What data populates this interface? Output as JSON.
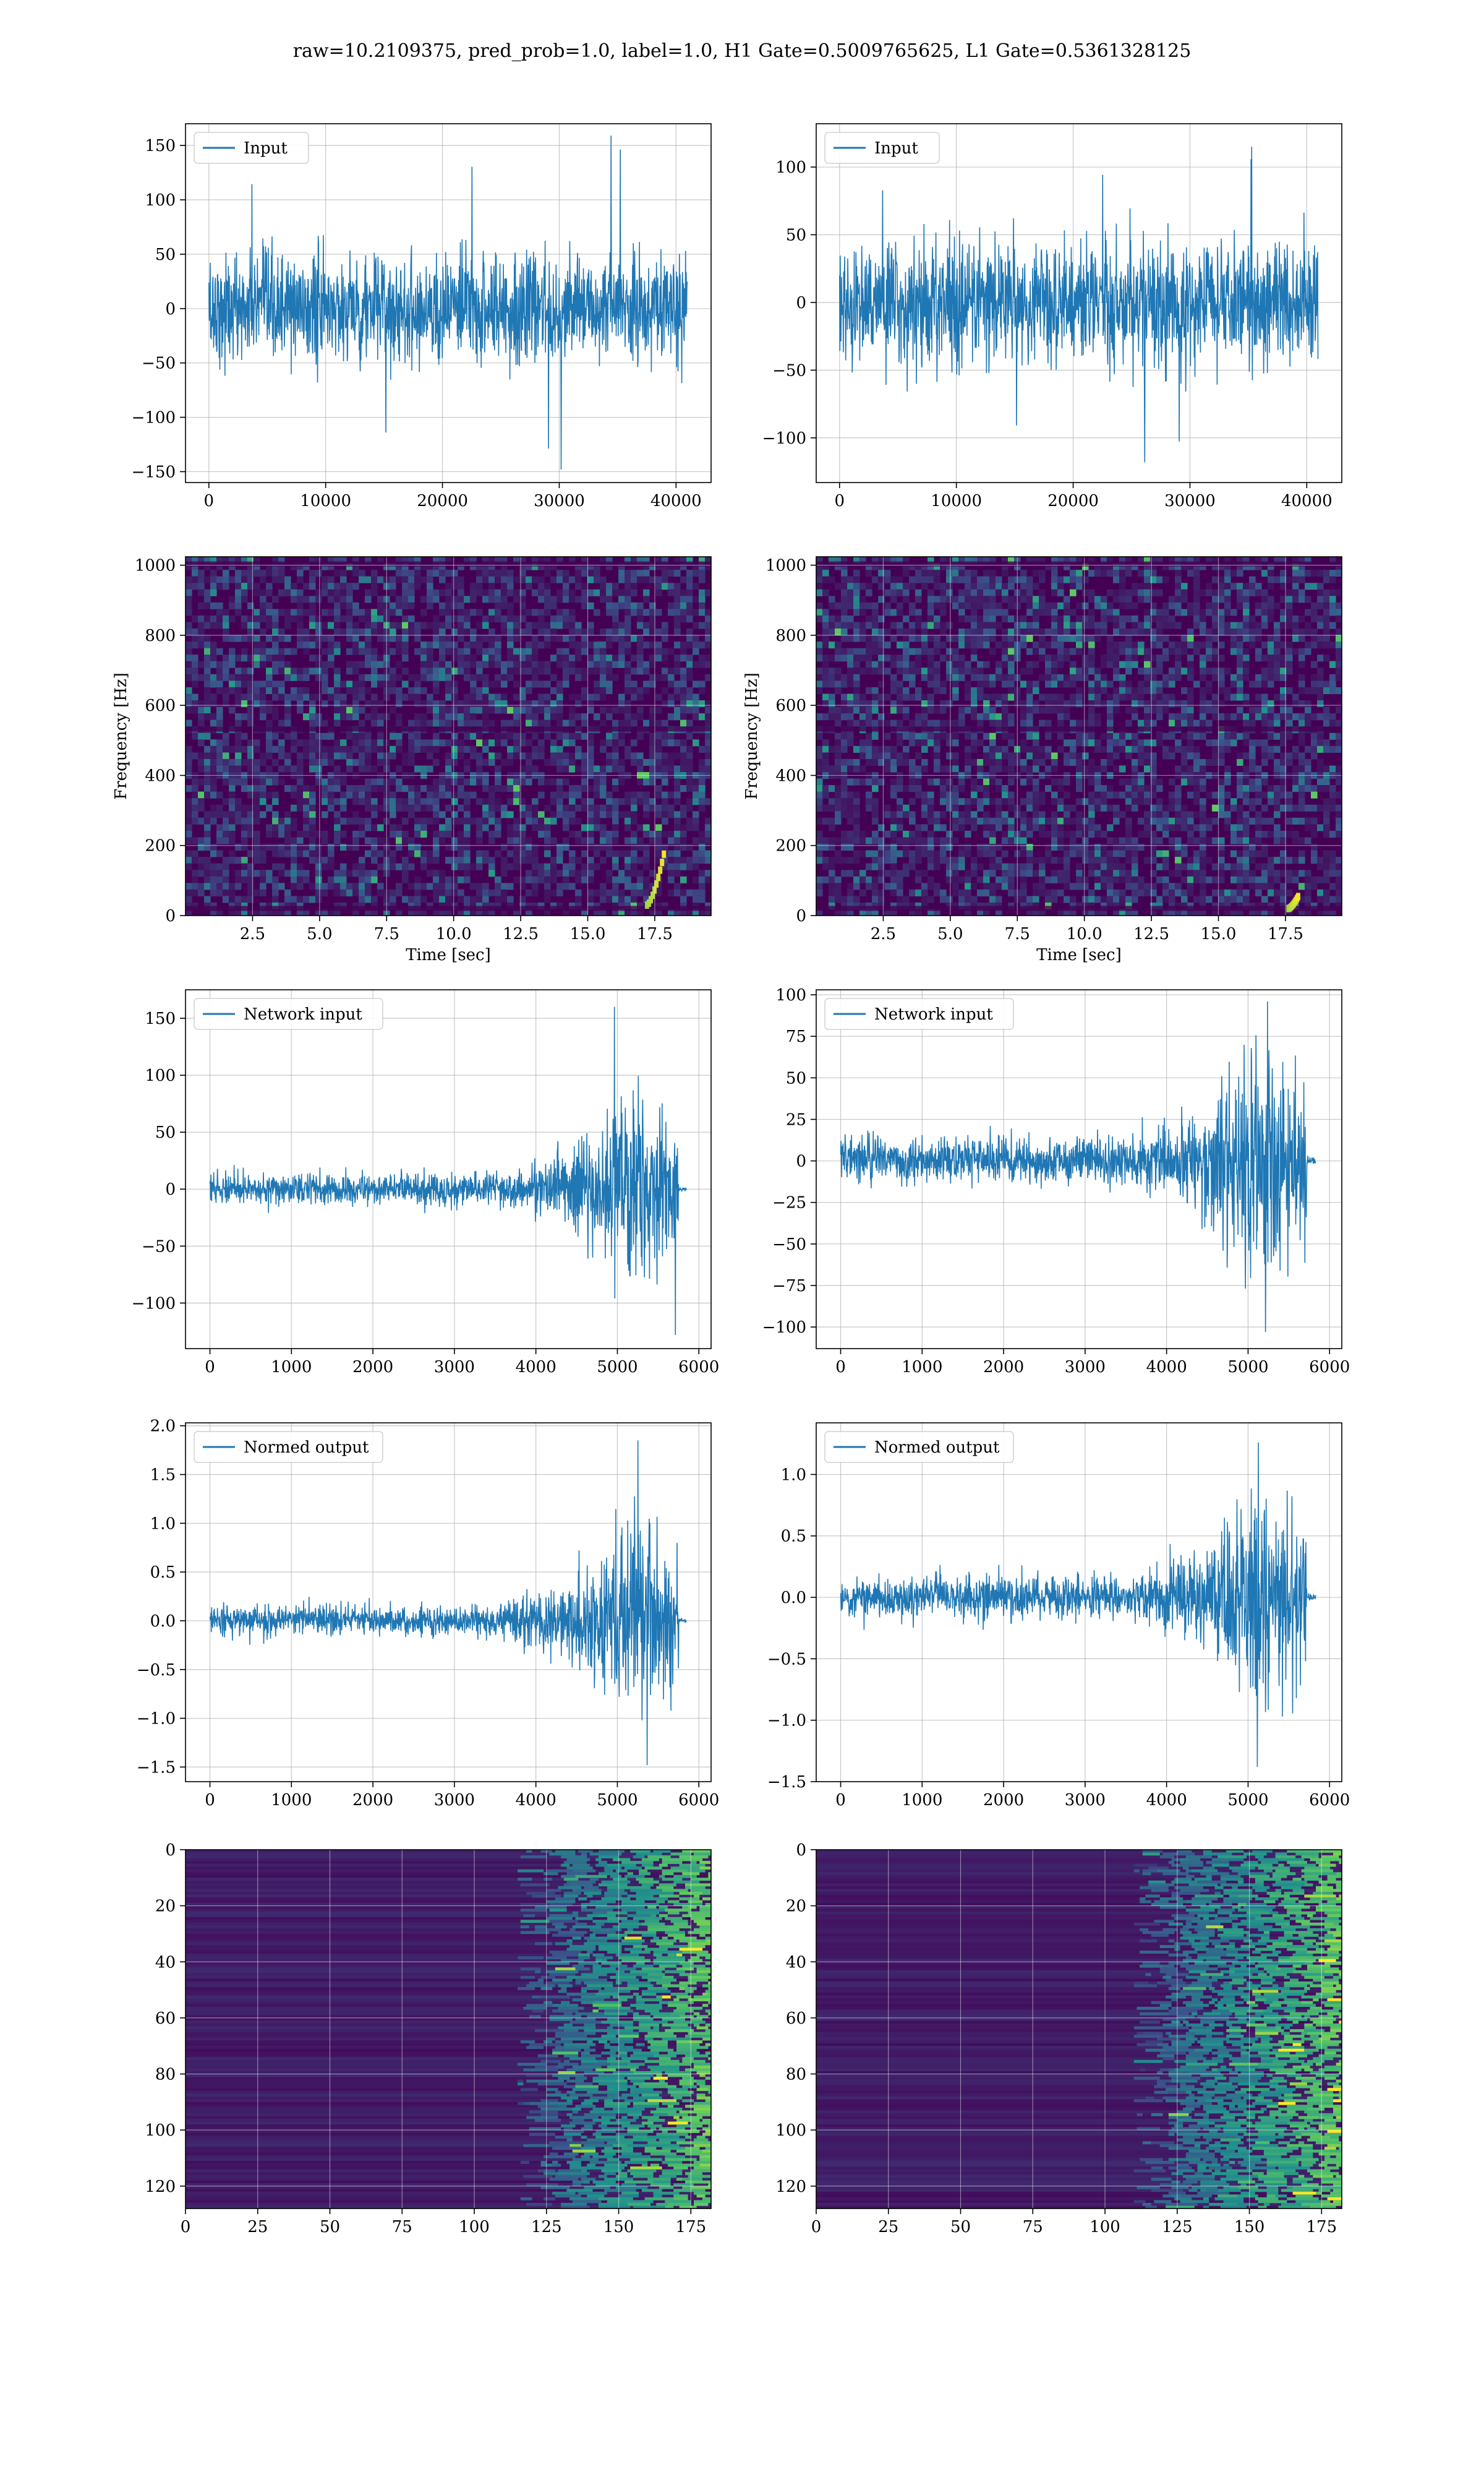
{
  "figure": {
    "title": "raw=10.2109375, pred_prob=1.0, label=1.0, H1 Gate=0.5009765625, L1 Gate=0.5361328125"
  },
  "colors": {
    "line": "#1f77b4",
    "grid": "#b0b0b0",
    "viridis_dark": "#440154",
    "viridis_mid": "#21918c",
    "viridis_bright": "#fde725"
  },
  "chart_data": [
    {
      "id": "h1-input",
      "type": "line",
      "column": "H1",
      "row": 1,
      "legend": "Input",
      "legend_position": "upper-left",
      "xlim": [
        -2000,
        43000
      ],
      "ylim": [
        -160,
        170
      ],
      "xticks": [
        0,
        10000,
        20000,
        30000,
        40000
      ],
      "yticks": [
        -150,
        -100,
        -50,
        0,
        50,
        100,
        150
      ],
      "signal": {
        "x_end": 40960,
        "noise_amplitude": 45,
        "peak_max": 159,
        "peak_min": -148
      },
      "grid": true
    },
    {
      "id": "l1-input",
      "type": "line",
      "column": "L1",
      "row": 1,
      "legend": "Input",
      "legend_position": "upper-left",
      "xlim": [
        -2000,
        43000
      ],
      "ylim": [
        -133,
        132
      ],
      "xticks": [
        0,
        10000,
        20000,
        30000,
        40000
      ],
      "yticks": [
        -100,
        -50,
        0,
        50,
        100
      ],
      "signal": {
        "x_end": 40960,
        "noise_amplitude": 40,
        "peak_max": 115,
        "peak_min": -118
      },
      "grid": true
    },
    {
      "id": "h1-spectrogram",
      "type": "heatmap",
      "column": "H1",
      "row": 2,
      "xlabel": "Time [sec]",
      "ylabel": "Frequency [Hz]",
      "xlim": [
        0,
        19.6
      ],
      "ylim": [
        0,
        1024
      ],
      "xticks": [
        2.5,
        5.0,
        7.5,
        10.0,
        12.5,
        15.0,
        17.5
      ],
      "yticks": [
        0,
        200,
        400,
        600,
        800,
        1000
      ],
      "colormap": "viridis",
      "grid": true,
      "chirp": {
        "t_start": 17.2,
        "t_end": 17.9,
        "f_start": 30,
        "f_end": 200
      }
    },
    {
      "id": "l1-spectrogram",
      "type": "heatmap",
      "column": "L1",
      "row": 2,
      "xlabel": "Time [sec]",
      "ylabel": "Frequency [Hz]",
      "xlim": [
        0,
        19.6
      ],
      "ylim": [
        0,
        1024
      ],
      "xticks": [
        2.5,
        5.0,
        7.5,
        10.0,
        12.5,
        15.0,
        17.5
      ],
      "yticks": [
        0,
        200,
        400,
        600,
        800,
        1000
      ],
      "colormap": "viridis",
      "grid": true,
      "chirp": {
        "t_start": 17.6,
        "t_end": 18.0,
        "f_start": 20,
        "f_end": 60
      }
    },
    {
      "id": "h1-network-input",
      "type": "line",
      "column": "H1",
      "row": 3,
      "legend": "Network input",
      "legend_position": "upper-left",
      "xlim": [
        -300,
        6150
      ],
      "ylim": [
        -140,
        175
      ],
      "xticks": [
        0,
        1000,
        2000,
        3000,
        4000,
        5000,
        6000
      ],
      "yticks": [
        -100,
        -50,
        0,
        50,
        100,
        150
      ],
      "signal": {
        "x_end": 5850,
        "burst_start": 3300,
        "burst_peak": 5200,
        "burst_end": 5750,
        "base_amplitude": 12,
        "burst_amplitude": 70,
        "peak_max": 160,
        "peak_min": -128
      },
      "grid": true
    },
    {
      "id": "l1-network-input",
      "type": "line",
      "column": "L1",
      "row": 3,
      "legend": "Network input",
      "legend_position": "upper-left",
      "xlim": [
        -300,
        6150
      ],
      "ylim": [
        -113,
        103
      ],
      "xticks": [
        0,
        1000,
        2000,
        3000,
        4000,
        5000,
        6000
      ],
      "yticks": [
        -100,
        -75,
        -50,
        -25,
        0,
        25,
        50,
        75,
        100
      ],
      "signal": {
        "x_end": 5830,
        "burst_start": 3200,
        "burst_peak": 5100,
        "burst_end": 5720,
        "base_amplitude": 12,
        "burst_amplitude": 55,
        "peak_max": 96,
        "peak_min": -103
      },
      "grid": true
    },
    {
      "id": "h1-normed-output",
      "type": "line",
      "column": "H1",
      "row": 4,
      "legend": "Normed output",
      "legend_position": "upper-left",
      "xlim": [
        -300,
        6150
      ],
      "ylim": [
        -1.65,
        2.03
      ],
      "xticks": [
        0,
        1000,
        2000,
        3000,
        4000,
        5000,
        6000
      ],
      "yticks": [
        -1.5,
        -1.0,
        -0.5,
        0.0,
        0.5,
        1.0,
        1.5,
        2.0
      ],
      "signal": {
        "x_end": 5850,
        "burst_start": 3300,
        "burst_peak": 5200,
        "burst_end": 5750,
        "base_amplitude": 0.14,
        "burst_amplitude": 0.8,
        "peak_max": 1.85,
        "peak_min": -1.48
      },
      "grid": true
    },
    {
      "id": "l1-normed-output",
      "type": "line",
      "column": "L1",
      "row": 4,
      "legend": "Normed output",
      "legend_position": "upper-left",
      "xlim": [
        -300,
        6150
      ],
      "ylim": [
        -1.5,
        1.42
      ],
      "xticks": [
        0,
        1000,
        2000,
        3000,
        4000,
        5000,
        6000
      ],
      "yticks": [
        -1.5,
        -1.0,
        -0.5,
        0.0,
        0.5,
        1.0
      ],
      "signal": {
        "x_end": 5830,
        "burst_start": 3200,
        "burst_peak": 5100,
        "burst_end": 5720,
        "base_amplitude": 0.15,
        "burst_amplitude": 0.6,
        "peak_max": 1.26,
        "peak_min": -1.38
      },
      "grid": true
    },
    {
      "id": "h1-feature-map",
      "type": "heatmap",
      "column": "H1",
      "row": 5,
      "xlim": [
        0,
        182
      ],
      "ylim": [
        128,
        0
      ],
      "xticks": [
        0,
        25,
        50,
        75,
        100,
        125,
        150,
        175
      ],
      "yticks": [
        0,
        20,
        40,
        60,
        80,
        100,
        120
      ],
      "colormap": "viridis",
      "grid": true,
      "activation_start": 115
    },
    {
      "id": "l1-feature-map",
      "type": "heatmap",
      "column": "L1",
      "row": 5,
      "xlim": [
        0,
        182
      ],
      "ylim": [
        128,
        0
      ],
      "xticks": [
        0,
        25,
        50,
        75,
        100,
        125,
        150,
        175
      ],
      "yticks": [
        0,
        20,
        40,
        60,
        80,
        100,
        120
      ],
      "colormap": "viridis",
      "grid": true,
      "activation_start": 110
    }
  ]
}
